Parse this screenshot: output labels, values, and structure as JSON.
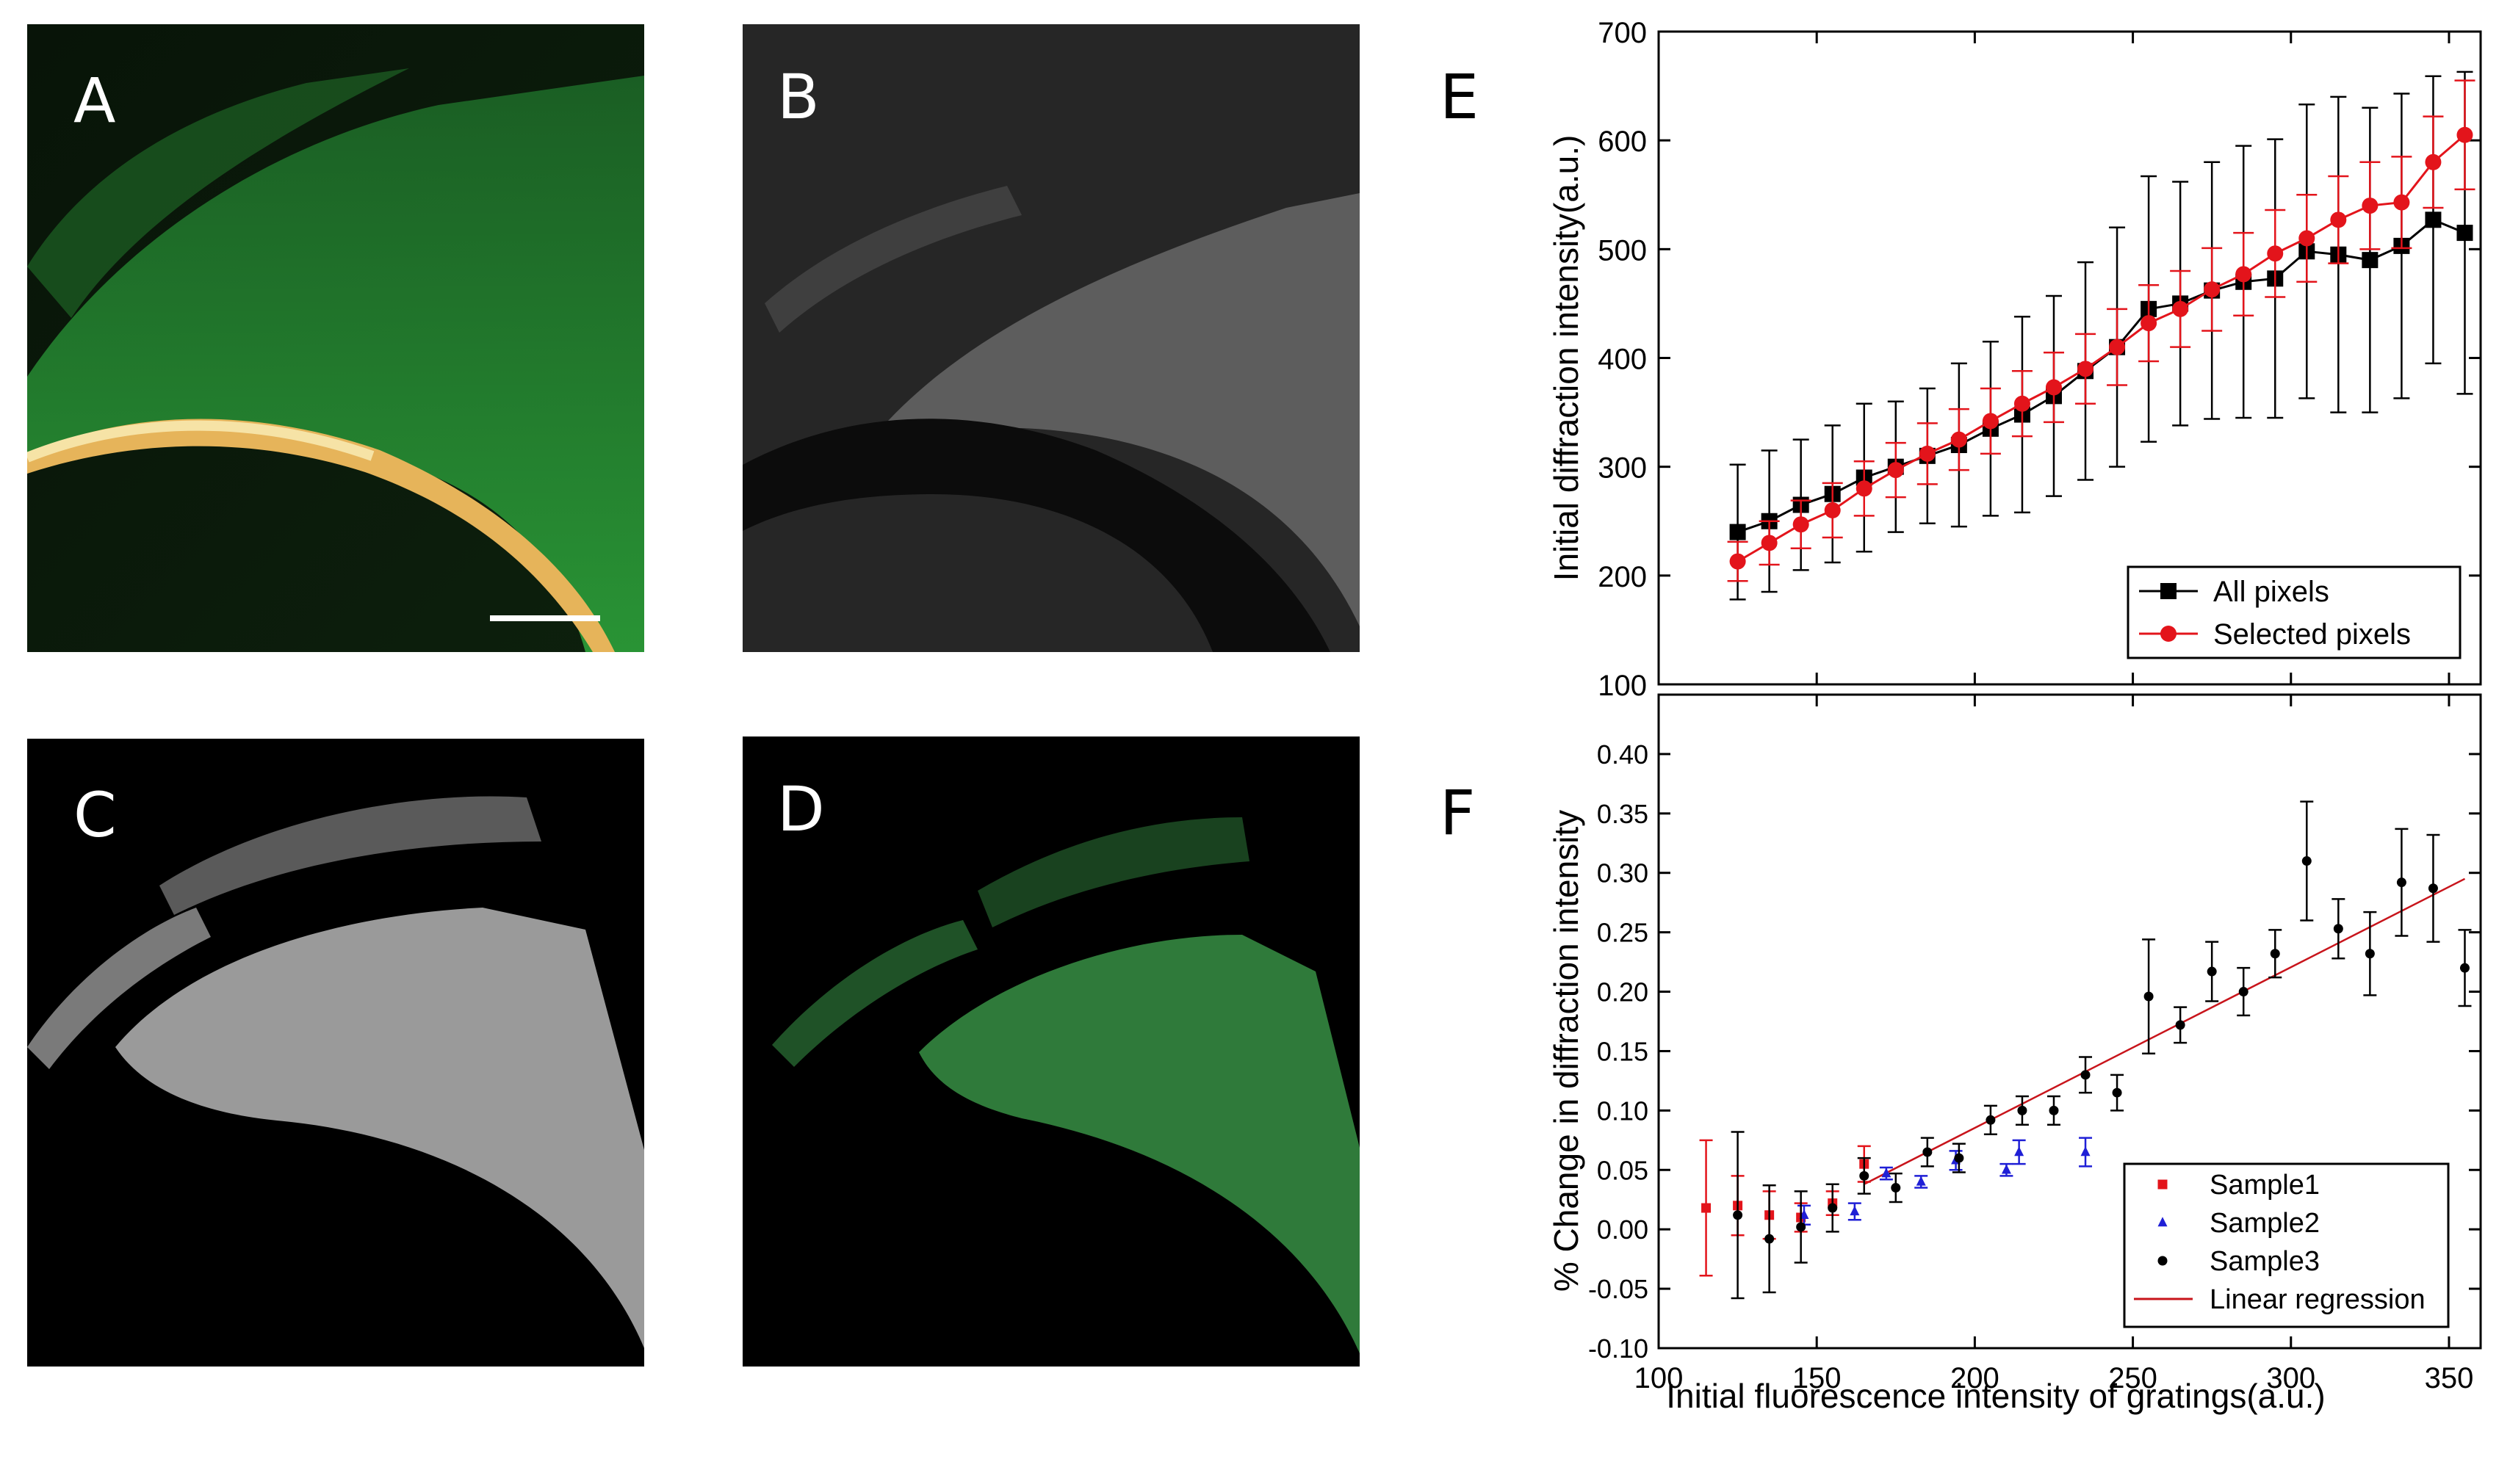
{
  "panels": {
    "A": {
      "label": "A"
    },
    "B": {
      "label": "B"
    },
    "C": {
      "label": "C"
    },
    "D": {
      "label": "D"
    },
    "E": {
      "label": "E"
    },
    "F": {
      "label": "F"
    }
  },
  "colors": {
    "all_pixels": "#000000",
    "selected_pixels": "#e3141b",
    "sample1": "#e3141b",
    "sample2": "#1f1fd6",
    "sample3": "#000000",
    "regression": "#c8141b"
  },
  "chart_data": [
    {
      "type": "line",
      "panel": "E",
      "title": "",
      "xlabel": "Initial fluorescence intensity of gratings(a.u.)",
      "ylabel": "Initial diffraction intensity(a.u.)",
      "xlim": [
        100,
        360
      ],
      "ylim": [
        100,
        700
      ],
      "yticks": [
        "100",
        "200",
        "300",
        "400",
        "500",
        "600",
        "700"
      ],
      "ytick_values": [
        100,
        200,
        300,
        400,
        500,
        600,
        700
      ],
      "legend_position": "bottom-right",
      "series": [
        {
          "name": "All pixels",
          "marker": "square",
          "x": [
            125,
            135,
            145,
            155,
            165,
            175,
            185,
            195,
            205,
            215,
            225,
            235,
            245,
            255,
            265,
            275,
            285,
            295,
            305,
            315,
            325,
            335,
            345,
            355
          ],
          "y": [
            240,
            250,
            265,
            275,
            290,
            300,
            310,
            320,
            335,
            348,
            365,
            388,
            410,
            445,
            450,
            462,
            470,
            473,
            498,
            495,
            490,
            503,
            527,
            515
          ],
          "err": [
            62,
            65,
            60,
            63,
            68,
            60,
            62,
            75,
            80,
            90,
            92,
            100,
            110,
            122,
            112,
            118,
            125,
            128,
            135,
            145,
            140,
            140,
            132,
            148
          ]
        },
        {
          "name": "Selected pixels",
          "marker": "circle",
          "x": [
            125,
            135,
            145,
            155,
            165,
            175,
            185,
            195,
            205,
            215,
            225,
            235,
            245,
            255,
            265,
            275,
            285,
            295,
            305,
            315,
            325,
            335,
            345,
            355
          ],
          "y": [
            213,
            230,
            247,
            260,
            280,
            297,
            312,
            325,
            342,
            358,
            373,
            390,
            410,
            432,
            445,
            463,
            477,
            496,
            510,
            527,
            540,
            543,
            580,
            605
          ],
          "err": [
            18,
            20,
            22,
            25,
            25,
            25,
            28,
            28,
            30,
            30,
            32,
            32,
            35,
            35,
            35,
            38,
            38,
            40,
            40,
            40,
            40,
            42,
            42,
            50
          ]
        }
      ]
    },
    {
      "type": "scatter",
      "panel": "F",
      "title": "",
      "xlabel": "Initial fluorescence intensity of gratings(a.u.)",
      "ylabel": "% Change in diffraction intensity",
      "xlim": [
        100,
        360
      ],
      "ylim": [
        -0.1,
        0.45
      ],
      "xticks": [
        "100",
        "150",
        "200",
        "250",
        "300",
        "350"
      ],
      "xtick_values": [
        100,
        150,
        200,
        250,
        300,
        350
      ],
      "yticks": [
        "-0.10",
        "-0.05",
        "0.00",
        "0.05",
        "0.10",
        "0.15",
        "0.20",
        "0.25",
        "0.30",
        "0.35",
        "0.40"
      ],
      "ytick_values": [
        -0.1,
        -0.05,
        0.0,
        0.05,
        0.1,
        0.15,
        0.2,
        0.25,
        0.3,
        0.35,
        0.4
      ],
      "legend_position": "bottom-right",
      "series": [
        {
          "name": "Sample1",
          "marker": "square",
          "x": [
            115,
            125,
            135,
            145,
            155,
            165
          ],
          "y": [
            0.018,
            0.02,
            0.012,
            0.01,
            0.022,
            0.055
          ],
          "err": [
            0.057,
            0.025,
            0.02,
            0.012,
            0.01,
            0.015
          ]
        },
        {
          "name": "Sample2",
          "marker": "triangle",
          "x": [
            146,
            162,
            172,
            183,
            194,
            210,
            214,
            235
          ],
          "y": [
            0.012,
            0.015,
            0.047,
            0.04,
            0.058,
            0.05,
            0.065,
            0.065
          ],
          "err": [
            0.008,
            0.007,
            0.005,
            0.005,
            0.008,
            0.005,
            0.01,
            0.012
          ]
        },
        {
          "name": "Sample3",
          "marker": "circle",
          "x": [
            125,
            135,
            145,
            155,
            165,
            175,
            185,
            195,
            205,
            215,
            225,
            235,
            245,
            255,
            265,
            275,
            285,
            295,
            305,
            315,
            325,
            335,
            345,
            355
          ],
          "y": [
            0.012,
            -0.008,
            0.002,
            0.018,
            0.045,
            0.035,
            0.065,
            0.06,
            0.092,
            0.1,
            0.1,
            0.13,
            0.115,
            0.196,
            0.172,
            0.217,
            0.2,
            0.232,
            0.31,
            0.253,
            0.232,
            0.292,
            0.287,
            0.22
          ],
          "err": [
            0.07,
            0.045,
            0.03,
            0.02,
            0.015,
            0.012,
            0.012,
            0.012,
            0.012,
            0.012,
            0.012,
            0.015,
            0.015,
            0.048,
            0.015,
            0.025,
            0.02,
            0.02,
            0.05,
            0.025,
            0.035,
            0.045,
            0.045,
            0.032
          ]
        },
        {
          "name": "Linear regression",
          "marker": "line",
          "x": [
            165,
            355
          ],
          "y": [
            0.038,
            0.295
          ]
        }
      ]
    }
  ]
}
